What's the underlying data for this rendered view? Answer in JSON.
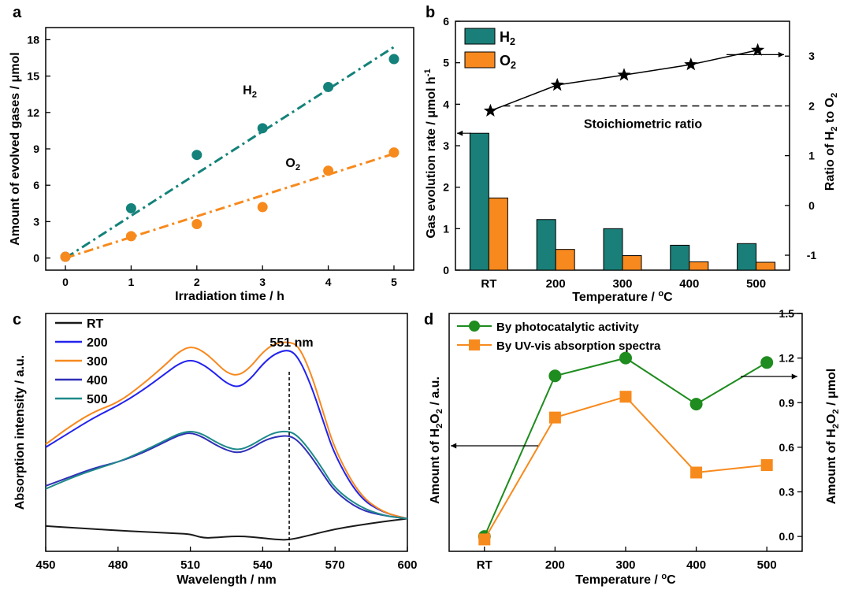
{
  "colors": {
    "teal": "#14827a",
    "orange": "#f78a1d",
    "bar_teal": "#1a7f79",
    "bar_orange": "#f7891f",
    "green": "#1e8c1e",
    "line_rt": "#1a1a1a",
    "line_200": "#2222ee",
    "line_300": "#f7891f",
    "line_400": "#2f2fb8",
    "line_500": "#1f8a8a"
  },
  "chart_data": [
    {
      "panel": "a",
      "type": "scatter",
      "xlabel": "Irradiation time / h",
      "ylabel": "Amount of evolved gases / μmol",
      "xlim": [
        -0.3,
        5.3
      ],
      "ylim": [
        -1,
        19
      ],
      "xticks": [
        "0",
        "1",
        "2",
        "3",
        "4",
        "5"
      ],
      "yticks": [
        "0",
        "3",
        "6",
        "9",
        "12",
        "15",
        "18"
      ],
      "series": [
        {
          "name": "H",
          "sub": "2",
          "x": [
            0,
            1,
            2,
            3,
            4,
            5
          ],
          "y": [
            0.1,
            4.1,
            8.5,
            10.7,
            14.1,
            16.4
          ],
          "fit": [
            [
              0,
              0
            ],
            [
              5,
              17.4
            ]
          ]
        },
        {
          "name": "O",
          "sub": "2",
          "x": [
            0,
            1,
            2,
            3,
            4,
            5
          ],
          "y": [
            0.1,
            1.8,
            2.8,
            4.2,
            7.2,
            8.7
          ],
          "fit": [
            [
              0,
              0
            ],
            [
              5,
              8.6
            ]
          ]
        }
      ]
    },
    {
      "panel": "b",
      "type": "bar",
      "categories": [
        "RT",
        "200",
        "300",
        "400",
        "500"
      ],
      "xlabel": "Temperature / ",
      "xlabel_sup": "o",
      "xlabel_tail": "C",
      "ylabel": "Gas evolution rate / μmol h",
      "ylabel_sup": "-1",
      "ylim": [
        0,
        6
      ],
      "yticks": [
        "0",
        "1",
        "2",
        "3",
        "4",
        "5",
        "6"
      ],
      "y2label_parts": [
        "Ratio of H",
        "2",
        " to O",
        "2"
      ],
      "y2lim": [
        -1.3,
        3.7
      ],
      "y2ticks": [
        "-1",
        "0",
        "1",
        "2",
        "3"
      ],
      "legend_position": "top-left",
      "series": [
        {
          "name": "H",
          "sub": "2",
          "values": [
            3.3,
            1.22,
            1.0,
            0.6,
            0.64
          ]
        },
        {
          "name": "O",
          "sub": "2",
          "values": [
            1.74,
            0.5,
            0.35,
            0.2,
            0.19
          ]
        }
      ],
      "ratio": [
        1.9,
        2.42,
        2.62,
        2.83,
        3.12
      ],
      "reference_line": 2,
      "annotation": "Stoichiometric ratio"
    },
    {
      "panel": "c",
      "type": "line",
      "xlabel": "Wavelength / nm",
      "ylabel": "Absorption intensity / a.u.",
      "xlim": [
        450,
        600
      ],
      "xticks": [
        "450",
        "480",
        "510",
        "540",
        "570",
        "600"
      ],
      "marker_line": 551,
      "annotation": "551 nm",
      "legend_position": "top-left",
      "series": [
        {
          "name": "RT",
          "x": [
            450,
            460,
            470,
            480,
            490,
            500,
            505,
            510,
            515,
            520,
            530,
            540,
            545,
            551,
            560,
            570,
            580,
            590,
            600
          ],
          "y": [
            0.085,
            0.08,
            0.075,
            0.07,
            0.066,
            0.062,
            0.06,
            0.058,
            0.045,
            0.046,
            0.052,
            0.045,
            0.04,
            0.038,
            0.055,
            0.075,
            0.088,
            0.1,
            0.11
          ]
        },
        {
          "name": "200",
          "x": [
            450,
            460,
            470,
            480,
            490,
            500,
            505,
            510,
            515,
            520,
            525,
            530,
            535,
            540,
            545,
            551,
            555,
            560,
            565,
            570,
            580,
            590,
            600
          ],
          "y": [
            0.35,
            0.4,
            0.45,
            0.49,
            0.54,
            0.6,
            0.63,
            0.645,
            0.63,
            0.6,
            0.565,
            0.55,
            0.58,
            0.63,
            0.665,
            0.68,
            0.65,
            0.56,
            0.44,
            0.32,
            0.18,
            0.13,
            0.11
          ]
        },
        {
          "name": "300",
          "x": [
            450,
            460,
            470,
            480,
            490,
            500,
            505,
            510,
            515,
            520,
            525,
            530,
            535,
            540,
            545,
            551,
            555,
            560,
            565,
            570,
            580,
            590,
            600
          ],
          "y": [
            0.36,
            0.42,
            0.47,
            0.5,
            0.56,
            0.63,
            0.67,
            0.69,
            0.675,
            0.64,
            0.6,
            0.59,
            0.62,
            0.67,
            0.7,
            0.705,
            0.69,
            0.6,
            0.47,
            0.34,
            0.19,
            0.13,
            0.11
          ]
        },
        {
          "name": "400",
          "x": [
            450,
            460,
            470,
            480,
            490,
            500,
            505,
            510,
            515,
            520,
            525,
            530,
            535,
            540,
            545,
            551,
            555,
            560,
            565,
            570,
            580,
            590,
            600
          ],
          "y": [
            0.22,
            0.25,
            0.28,
            0.3,
            0.33,
            0.37,
            0.39,
            0.4,
            0.385,
            0.36,
            0.34,
            0.33,
            0.345,
            0.37,
            0.385,
            0.39,
            0.37,
            0.32,
            0.26,
            0.2,
            0.14,
            0.12,
            0.11
          ]
        },
        {
          "name": "500",
          "x": [
            450,
            460,
            470,
            480,
            490,
            500,
            505,
            510,
            515,
            520,
            525,
            530,
            535,
            540,
            545,
            551,
            555,
            560,
            565,
            570,
            580,
            590,
            600
          ],
          "y": [
            0.21,
            0.245,
            0.275,
            0.3,
            0.335,
            0.375,
            0.395,
            0.405,
            0.395,
            0.37,
            0.35,
            0.34,
            0.355,
            0.38,
            0.4,
            0.405,
            0.385,
            0.335,
            0.275,
            0.21,
            0.15,
            0.12,
            0.11
          ]
        }
      ]
    },
    {
      "panel": "d",
      "type": "line",
      "categories": [
        "RT",
        "200",
        "300",
        "400",
        "500"
      ],
      "xlabel": "Temperature / ",
      "xlabel_sup": "o",
      "xlabel_tail": "C",
      "ylabel_parts": [
        "Amount of H",
        "2",
        "O",
        "2",
        " / a.u."
      ],
      "y2label_parts": [
        "Amount of H",
        "2",
        "O",
        "2",
        " / μmol"
      ],
      "y2lim": [
        -0.1,
        1.5
      ],
      "y2ticks": [
        "0.0",
        "0.3",
        "0.6",
        "0.9",
        "1.2",
        "1.5"
      ],
      "legend_position": "top-left",
      "series": [
        {
          "name": "By photocatalytic activity",
          "values": [
            0.0,
            1.08,
            1.2,
            0.89,
            1.17
          ]
        },
        {
          "name": "By UV-vis absorption spectra",
          "values": [
            -0.02,
            0.8,
            0.94,
            0.43,
            0.48
          ]
        }
      ]
    }
  ],
  "panel_labels": [
    "a",
    "b",
    "c",
    "d"
  ]
}
